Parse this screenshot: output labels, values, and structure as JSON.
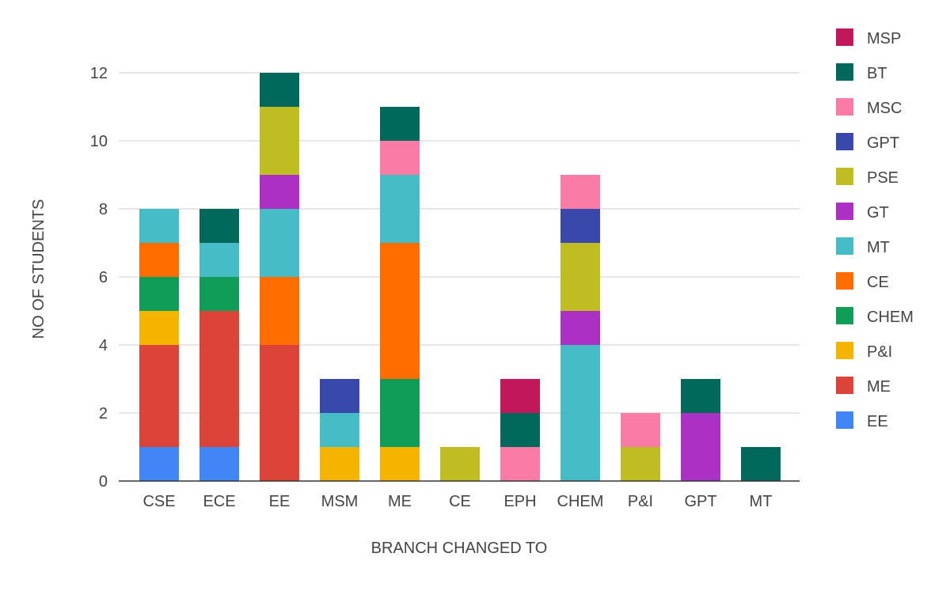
{
  "chart_data": {
    "type": "bar",
    "stacked": true,
    "title": "",
    "xlabel": "BRANCH CHANGED TO",
    "ylabel": "NO OF STUDENTS",
    "ylim": [
      0,
      12
    ],
    "yticks": [
      0,
      2,
      4,
      6,
      8,
      10,
      12
    ],
    "grid": true,
    "legend_position": "right",
    "categories": [
      "CSE",
      "ECE",
      "EE",
      "MSM",
      "ME",
      "CE",
      "EPH",
      "CHEM",
      "P&I",
      "GPT",
      "MT"
    ],
    "series": [
      {
        "name": "EE",
        "color": "#4285F4",
        "values": [
          1,
          1,
          0,
          0,
          0,
          0,
          0,
          0,
          0,
          0,
          0
        ]
      },
      {
        "name": "ME",
        "color": "#DB4437",
        "values": [
          3,
          4,
          4,
          0,
          0,
          0,
          0,
          0,
          0,
          0,
          0
        ]
      },
      {
        "name": "P&I",
        "color": "#F4B400",
        "values": [
          1,
          0,
          0,
          1,
          1,
          0,
          0,
          0,
          0,
          0,
          0
        ]
      },
      {
        "name": "CHEM",
        "color": "#0F9D58",
        "values": [
          1,
          1,
          0,
          0,
          2,
          0,
          0,
          0,
          0,
          0,
          0
        ]
      },
      {
        "name": "CE",
        "color": "#FF6D00",
        "values": [
          1,
          0,
          2,
          0,
          4,
          0,
          0,
          0,
          0,
          0,
          0
        ]
      },
      {
        "name": "MT",
        "color": "#46BDC6",
        "values": [
          1,
          1,
          2,
          1,
          2,
          0,
          0,
          4,
          0,
          0,
          0
        ]
      },
      {
        "name": "GT",
        "color": "#AB30C4",
        "values": [
          0,
          0,
          1,
          0,
          0,
          0,
          0,
          1,
          0,
          2,
          0
        ]
      },
      {
        "name": "PSE",
        "color": "#C0BD22",
        "values": [
          0,
          0,
          2,
          0,
          0,
          1,
          0,
          2,
          1,
          0,
          0
        ]
      },
      {
        "name": "GPT",
        "color": "#3949AB",
        "values": [
          0,
          0,
          0,
          1,
          0,
          0,
          0,
          1,
          0,
          0,
          0
        ]
      },
      {
        "name": "MSC",
        "color": "#F97BA6",
        "values": [
          0,
          0,
          0,
          0,
          1,
          0,
          1,
          1,
          1,
          0,
          0
        ]
      },
      {
        "name": "BT",
        "color": "#00695C",
        "values": [
          0,
          1,
          1,
          0,
          1,
          0,
          1,
          0,
          0,
          1,
          1
        ]
      },
      {
        "name": "MSP",
        "color": "#C2185B",
        "values": [
          0,
          0,
          0,
          0,
          0,
          0,
          1,
          0,
          0,
          0,
          0
        ]
      }
    ]
  }
}
